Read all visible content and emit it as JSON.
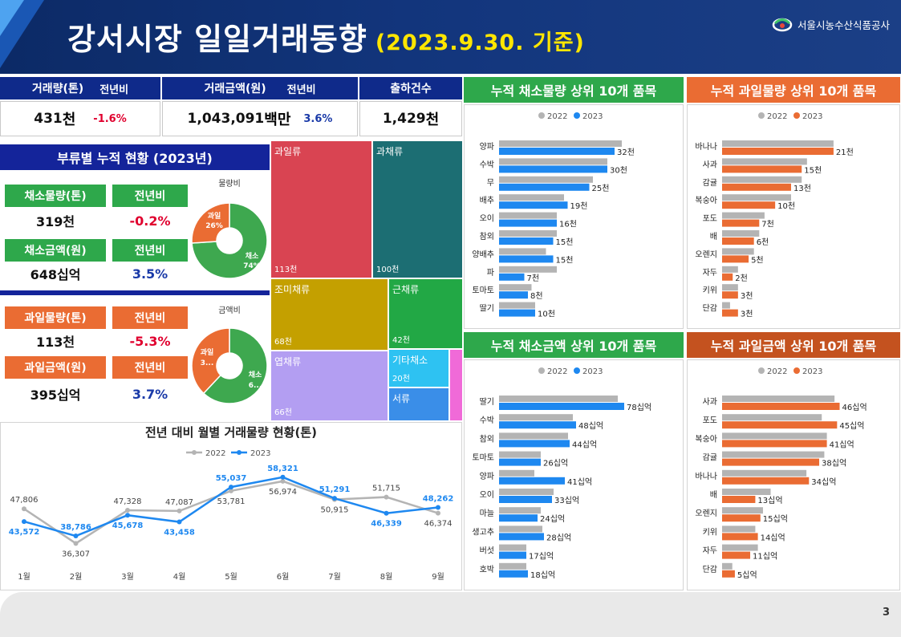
{
  "header": {
    "title": "강서시장 일일거래동향",
    "date": "(2023.9.30. 기준)",
    "org": "서울시농수산식품공사"
  },
  "kpi": {
    "vol_label": "거래량(톤)",
    "vol_yoy_label": "전년비",
    "vol": "431",
    "vol_unit": "천",
    "vol_yoy": "-1.6%",
    "amt_label": "거래금액(원)",
    "amt_yoy_label": "전년비",
    "amt": "1,043,091",
    "amt_unit": "백만",
    "amt_yoy": "3.6%",
    "ship_label": "출하건수",
    "ship": "1,429",
    "ship_unit": "천"
  },
  "category": {
    "title": "부류별 누적 현황 (2023년)",
    "veg_vol_label": "채소물량(톤)",
    "veg_vol_yoy_label": "전년비",
    "veg_vol": "319천",
    "veg_vol_yoy": "-0.2%",
    "veg_amt_label": "채소금액(원)",
    "veg_amt_yoy_label": "전년비",
    "veg_amt": "648십억",
    "veg_amt_yoy": "3.5%",
    "fruit_vol_label": "과일물량(톤)",
    "fruit_vol_yoy_label": "전년비",
    "fruit_vol": "113천",
    "fruit_vol_yoy": "-5.3%",
    "fruit_amt_label": "과일금액(원)",
    "fruit_amt_yoy_label": "전년비",
    "fruit_amt": "395십억",
    "fruit_amt_yoy": "3.7%",
    "donut1_title": "물량비",
    "donut1_fruit": "과일",
    "donut1_fruit_pct": "26%",
    "donut1_veg": "채소",
    "donut1_veg_pct": "74%",
    "donut2_title": "금액비",
    "donut2_fruit": "과일",
    "donut2_fruit_pct": "3...",
    "donut2_veg": "채소",
    "donut2_veg_pct": "6..."
  },
  "treemap": [
    {
      "name": "과일류",
      "value": "113천",
      "color": "#d94452"
    },
    {
      "name": "과채류",
      "value": "100천",
      "color": "#1c6e73"
    },
    {
      "name": "조미채류",
      "value": "68천",
      "color": "#c4a000"
    },
    {
      "name": "근채류",
      "value": "42천",
      "color": "#22a845"
    },
    {
      "name": "엽채류",
      "value": "66천",
      "color": "#b39ef2"
    },
    {
      "name": "기타채소",
      "value": "20천",
      "color": "#2ec2f2"
    },
    {
      "name": "서류",
      "value": "",
      "color": "#3a8ee8"
    },
    {
      "name": "",
      "value": "",
      "color": "#f06ad8"
    }
  ],
  "colors": {
    "c2022": "#b4b4b4",
    "c2023_blue": "#1e88f0",
    "c2023_orange": "#ea6c33"
  },
  "legend": {
    "y2022": "2022",
    "y2023": "2023"
  },
  "chart_data": [
    {
      "type": "line",
      "title": "전년 대비 월별 거래물량 현황(톤)",
      "categories": [
        "1월",
        "2월",
        "3월",
        "4월",
        "5월",
        "6월",
        "7월",
        "8월",
        "9월"
      ],
      "series": [
        {
          "name": "2022",
          "values": [
            47806,
            36307,
            47328,
            47087,
            53781,
            56974,
            50915,
            51715,
            46374
          ],
          "labels": [
            "47,806",
            "36,307",
            "47,328",
            "47,087",
            "53,781",
            "56,974",
            "50,915",
            "51,715",
            "46,374"
          ]
        },
        {
          "name": "2023",
          "values": [
            43572,
            38786,
            45678,
            43458,
            55037,
            58321,
            51291,
            46339,
            48262
          ],
          "labels": [
            "43,572",
            "38,786",
            "45,678",
            "43,458",
            "55,037",
            "58,321",
            "51,291",
            "46,339",
            "48,262"
          ]
        }
      ],
      "ylim": [
        30000,
        62000
      ]
    },
    {
      "type": "bar",
      "title": "누적 채소물량 상위 10개 품목",
      "categories": [
        "양파",
        "수박",
        "무",
        "배추",
        "오이",
        "참외",
        "양배추",
        "파",
        "토마토",
        "딸기"
      ],
      "series": [
        {
          "name": "2022",
          "values": [
            34,
            30,
            26,
            18,
            16,
            16,
            13,
            16,
            9,
            10
          ]
        },
        {
          "name": "2023",
          "values": [
            32,
            30,
            25,
            19,
            16,
            15,
            15,
            7,
            8,
            10
          ],
          "labels": [
            "32천",
            "30천",
            "25천",
            "19천",
            "16천",
            "15천",
            "15천",
            "7천",
            "8천",
            "10천"
          ]
        }
      ],
      "xmax": 40
    },
    {
      "type": "bar",
      "title": "누적 과일물량 상위 10개 품목",
      "categories": [
        "바나나",
        "사과",
        "감귤",
        "복숭아",
        "포도",
        "배",
        "오렌지",
        "자두",
        "키위",
        "단감"
      ],
      "series": [
        {
          "name": "2022",
          "values": [
            21,
            16,
            15,
            13,
            8,
            7,
            6,
            3,
            3,
            1.5
          ]
        },
        {
          "name": "2023",
          "values": [
            21,
            15,
            13,
            10,
            7,
            6,
            5,
            2,
            3,
            3
          ],
          "labels": [
            "21천",
            "15천",
            "13천",
            "10천",
            "7천",
            "6천",
            "5천",
            "2천",
            "3천",
            "3천"
          ]
        }
      ],
      "xmax": 26
    },
    {
      "type": "bar",
      "title": "누적 채소금액 상위 10개 품목",
      "categories": [
        "딸기",
        "수박",
        "참외",
        "토마토",
        "양파",
        "오이",
        "마늘",
        "생고추",
        "버섯",
        "호박"
      ],
      "series": [
        {
          "name": "2022",
          "values": [
            74,
            46,
            43,
            26,
            22,
            34,
            26,
            27,
            17,
            17
          ]
        },
        {
          "name": "2023",
          "values": [
            78,
            48,
            44,
            26,
            41,
            33,
            24,
            28,
            17,
            18
          ],
          "labels": [
            "78십억",
            "48십억",
            "44십억",
            "26십억",
            "41십억",
            "33십억",
            "24십억",
            "28십억",
            "17십억",
            "18십억"
          ]
        }
      ],
      "xmax": 90
    },
    {
      "type": "bar",
      "title": "누적 과일금액 상위 10개 품목",
      "categories": [
        "사과",
        "포도",
        "복숭아",
        "감귤",
        "바나나",
        "배",
        "오렌지",
        "키위",
        "자두",
        "단감"
      ],
      "series": [
        {
          "name": "2022",
          "values": [
            44,
            39,
            41,
            40,
            33,
            19,
            16,
            13,
            14,
            4
          ]
        },
        {
          "name": "2023",
          "values": [
            46,
            45,
            41,
            38,
            34,
            13,
            15,
            14,
            11,
            5
          ],
          "labels": [
            "46십억",
            "45십억",
            "41십억",
            "38십억",
            "34십억",
            "13십억",
            "15십억",
            "14십억",
            "11십억",
            "5십억"
          ]
        }
      ],
      "xmax": 54
    }
  ],
  "page": {
    "number": "3"
  }
}
